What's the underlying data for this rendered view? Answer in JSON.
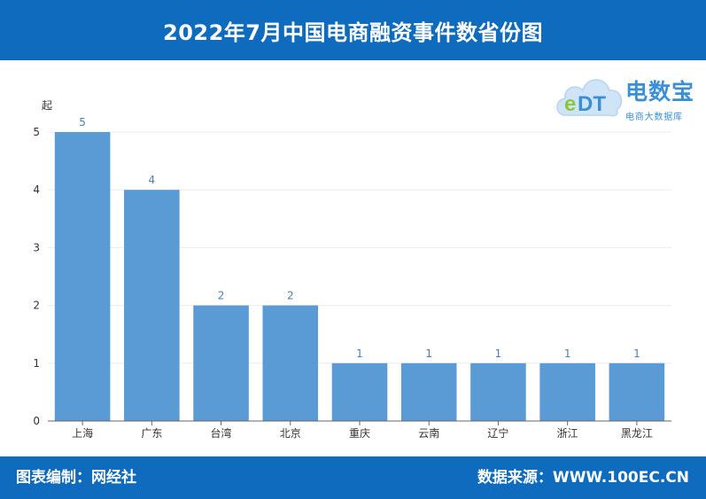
{
  "header": {
    "title": "2022年7月中国电商融资事件数省份图"
  },
  "logo": {
    "icon": "cloud-edt-icon",
    "text": "电数宝",
    "subtitle": "电商大数据库"
  },
  "footer": {
    "left": "图表编制：网经社",
    "right": "数据来源：WWW.100EC.CN"
  },
  "colors": {
    "brand": "#0e6bbd",
    "bar": "#5b9bd5",
    "label": "#4a7fb5"
  },
  "chart_data": {
    "type": "bar",
    "title": "2022年7月中国电商融资事件数省份图",
    "xlabel": "",
    "ylabel": "起",
    "categories": [
      "上海",
      "广东",
      "台湾",
      "北京",
      "重庆",
      "云南",
      "辽宁",
      "浙江",
      "黑龙江"
    ],
    "values": [
      5,
      4,
      2,
      2,
      1,
      1,
      1,
      1,
      1
    ],
    "ylim": [
      0,
      5
    ],
    "yticks": [
      0,
      1,
      2,
      3,
      4,
      5
    ],
    "grid": true,
    "data_labels": true
  }
}
